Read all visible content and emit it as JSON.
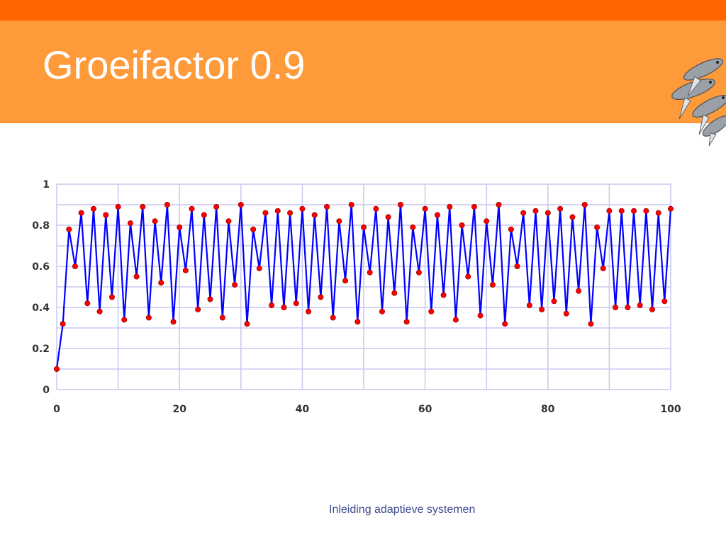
{
  "slide": {
    "title": "Groeifactor 0.9",
    "footer": "Inleiding adaptieve systemen"
  },
  "colors": {
    "topbar": "#ff6600",
    "header": "#fe9a3a",
    "line": "#0000ff",
    "marker": "#ff0000",
    "grid": "#c8c8f0"
  },
  "icons": {
    "logo": "fish-school-icon"
  },
  "chart_data": {
    "type": "line",
    "title": "",
    "xlabel": "",
    "ylabel": "",
    "xlim": [
      0,
      100
    ],
    "ylim": [
      0,
      1
    ],
    "xticks": [
      0,
      20,
      40,
      60,
      80,
      100
    ],
    "yticks": [
      0,
      0.2,
      0.4,
      0.6,
      0.8,
      1
    ],
    "ytick_labels": [
      "0",
      "0.2",
      "0.4",
      "0.6",
      "0.8",
      "1"
    ],
    "grid": true,
    "legend": "none",
    "series": [
      {
        "x": [
          0,
          1,
          2,
          3,
          4,
          5,
          6,
          7,
          8,
          9,
          10,
          11,
          12,
          13,
          14,
          15,
          16,
          17,
          18,
          19,
          20,
          21,
          22,
          23,
          24,
          25,
          26,
          27,
          28,
          29,
          30,
          31,
          32,
          33,
          34,
          35,
          36,
          37,
          38,
          39,
          40,
          41,
          42,
          43,
          44,
          45,
          46,
          47,
          48,
          49,
          50,
          51,
          52,
          53,
          54,
          55,
          56,
          57,
          58,
          59,
          60,
          61,
          62,
          63,
          64,
          65,
          66,
          67,
          68,
          69,
          70,
          71,
          72,
          73,
          74,
          75,
          76,
          77,
          78,
          79,
          80,
          81,
          82,
          83,
          84,
          85,
          86,
          87,
          88,
          89,
          90,
          91,
          92,
          93,
          94,
          95,
          96,
          97,
          98,
          99,
          100
        ],
        "y": [
          0.1,
          0.32,
          0.78,
          0.6,
          0.86,
          0.42,
          0.88,
          0.38,
          0.85,
          0.45,
          0.89,
          0.34,
          0.81,
          0.55,
          0.89,
          0.35,
          0.82,
          0.52,
          0.9,
          0.33,
          0.79,
          0.58,
          0.88,
          0.39,
          0.85,
          0.44,
          0.89,
          0.35,
          0.82,
          0.51,
          0.9,
          0.32,
          0.78,
          0.59,
          0.86,
          0.41,
          0.87,
          0.4,
          0.86,
          0.42,
          0.88,
          0.38,
          0.85,
          0.45,
          0.89,
          0.35,
          0.82,
          0.53,
          0.9,
          0.33,
          0.79,
          0.57,
          0.88,
          0.38,
          0.84,
          0.47,
          0.9,
          0.33,
          0.79,
          0.57,
          0.88,
          0.38,
          0.85,
          0.46,
          0.89,
          0.34,
          0.8,
          0.55,
          0.89,
          0.36,
          0.82,
          0.51,
          0.9,
          0.32,
          0.78,
          0.6,
          0.86,
          0.41,
          0.87,
          0.39,
          0.86,
          0.43,
          0.88,
          0.37,
          0.84,
          0.48,
          0.9,
          0.32,
          0.79,
          0.59,
          0.87,
          0.4,
          0.87,
          0.4,
          0.87,
          0.41,
          0.87,
          0.39,
          0.86,
          0.43,
          0.88
        ]
      }
    ]
  }
}
